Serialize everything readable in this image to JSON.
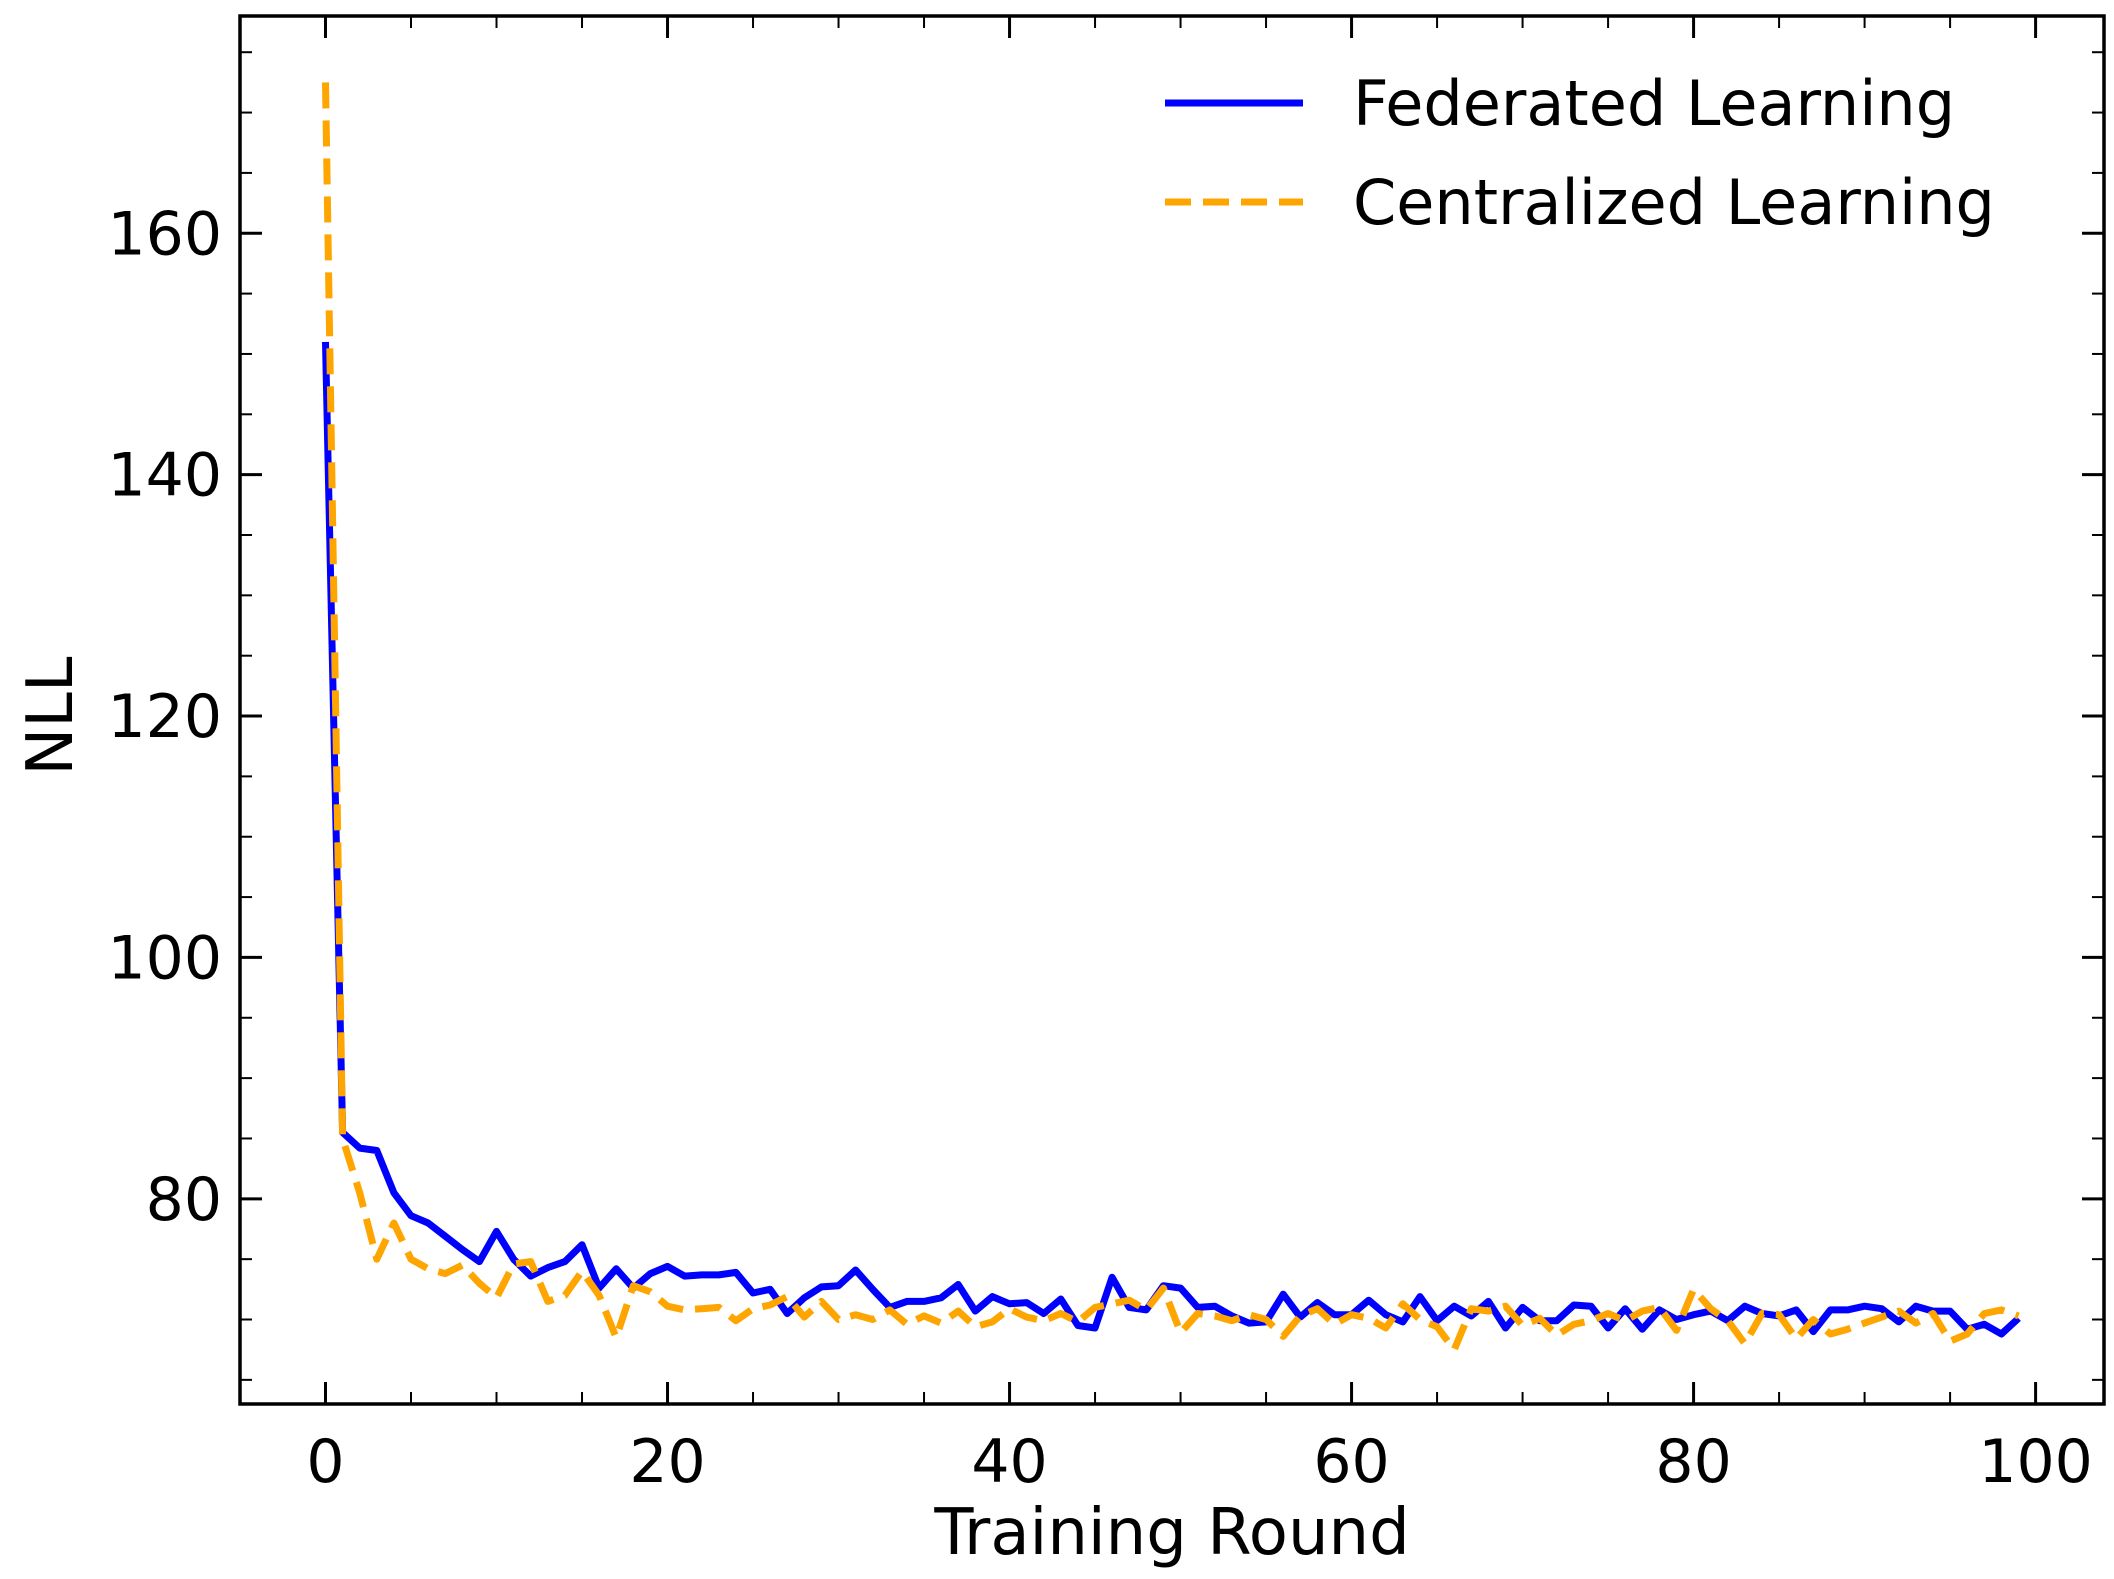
{
  "chart_data": {
    "type": "line",
    "title": "",
    "xlabel": "Training Round",
    "ylabel": "NLL",
    "xlim": [
      -5,
      104
    ],
    "ylim": [
      63,
      178
    ],
    "xticks": [
      0,
      20,
      40,
      60,
      80,
      100
    ],
    "yticks": [
      80,
      100,
      120,
      140,
      160
    ],
    "grid": false,
    "legend_position": "top-right",
    "series": [
      {
        "name": "Federated Learning",
        "color": "#0000ff",
        "style": "solid",
        "values": [
          151.0,
          85.5,
          84.2,
          84.0,
          80.5,
          78.6,
          78.0,
          76.9,
          75.8,
          74.8,
          77.3,
          75.0,
          73.6,
          74.3,
          74.8,
          76.2,
          72.6,
          74.2,
          72.6,
          73.8,
          74.4,
          73.6,
          73.7,
          73.7,
          73.9,
          72.2,
          72.5,
          70.5,
          71.8,
          72.7,
          72.8,
          74.1,
          72.5,
          71.0,
          71.5,
          71.5,
          71.8,
          72.9,
          70.7,
          71.9,
          71.3,
          71.4,
          70.5,
          71.7,
          69.5,
          69.3,
          73.5,
          71.0,
          70.8,
          72.8,
          72.6,
          71.0,
          71.1,
          70.3,
          69.7,
          69.8,
          72.1,
          70.2,
          71.4,
          70.4,
          70.4,
          71.6,
          70.4,
          69.8,
          71.9,
          69.9,
          71.1,
          70.3,
          71.5,
          69.3,
          71.0,
          69.9,
          69.9,
          71.2,
          71.1,
          69.3,
          70.9,
          69.2,
          70.8,
          70.0,
          70.4,
          70.7,
          69.9,
          71.1,
          70.5,
          70.3,
          70.8,
          69.0,
          70.8,
          70.8,
          71.1,
          70.9,
          69.8,
          71.1,
          70.7,
          70.7,
          69.2,
          69.6,
          68.8,
          70.1
        ]
      },
      {
        "name": "Centralized Learning",
        "color": "#ffa500",
        "style": "dashed",
        "values": [
          172.5,
          85.0,
          80.5,
          75.0,
          78.0,
          75.0,
          74.2,
          73.8,
          74.5,
          73.0,
          71.8,
          74.6,
          74.8,
          71.5,
          72.0,
          74.0,
          72.0,
          68.5,
          72.8,
          72.3,
          71.1,
          70.8,
          70.9,
          71.0,
          69.9,
          70.9,
          71.2,
          71.9,
          70.2,
          71.5,
          70.0,
          70.4,
          70.0,
          70.8,
          69.6,
          70.3,
          69.7,
          70.7,
          69.4,
          69.8,
          70.9,
          70.2,
          69.9,
          70.5,
          69.8,
          71.0,
          71.3,
          71.6,
          70.8,
          72.6,
          68.9,
          70.5,
          70.3,
          69.9,
          70.4,
          70.0,
          68.6,
          70.3,
          70.9,
          69.6,
          70.4,
          70.1,
          69.3,
          71.3,
          70.0,
          69.4,
          67.5,
          70.9,
          70.7,
          71.1,
          69.5,
          70.1,
          68.7,
          69.6,
          69.9,
          70.5,
          69.9,
          70.7,
          71.0,
          69.1,
          72.5,
          70.9,
          69.9,
          68.0,
          70.5,
          70.4,
          68.4,
          70.0,
          68.8,
          69.2,
          69.7,
          70.2,
          70.7,
          69.7,
          70.5,
          68.2,
          68.8,
          70.5,
          70.8,
          70.3
        ]
      }
    ]
  }
}
